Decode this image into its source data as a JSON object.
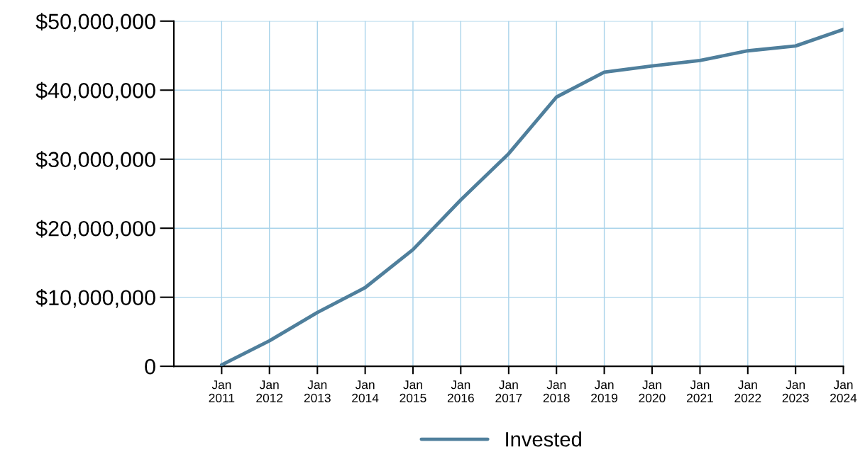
{
  "chart_data": {
    "type": "line",
    "x": [
      "2011-01",
      "2012-01",
      "2013-01",
      "2014-01",
      "2015-01",
      "2016-01",
      "2017-01",
      "2018-01",
      "2019-01",
      "2020-01",
      "2021-01",
      "2022-01",
      "2023-01",
      "2024-01"
    ],
    "series": [
      {
        "name": "Invested",
        "color": "#4f7f9c",
        "values": [
          200000,
          3700000,
          7800000,
          11400000,
          16900000,
          24100000,
          30800000,
          39000000,
          42600000,
          43500000,
          44300000,
          45700000,
          46400000,
          48800000
        ]
      }
    ],
    "xlim": [
      "2010-01",
      "2024-01"
    ],
    "xticks": [
      {
        "value": "2011-01",
        "label": "Jan\n2011"
      },
      {
        "value": "2012-01",
        "label": "Jan\n2012"
      },
      {
        "value": "2013-01",
        "label": "Jan\n2013"
      },
      {
        "value": "2014-01",
        "label": "Jan\n2014"
      },
      {
        "value": "2015-01",
        "label": "Jan\n2015"
      },
      {
        "value": "2016-01",
        "label": "Jan\n2016"
      },
      {
        "value": "2017-01",
        "label": "Jan\n2017"
      },
      {
        "value": "2018-01",
        "label": "Jan\n2018"
      },
      {
        "value": "2019-01",
        "label": "Jan\n2019"
      },
      {
        "value": "2020-01",
        "label": "Jan\n2020"
      },
      {
        "value": "2021-01",
        "label": "Jan\n2021"
      },
      {
        "value": "2022-01",
        "label": "Jan\n2022"
      },
      {
        "value": "2023-01",
        "label": "Jan\n2023"
      },
      {
        "value": "2024-01",
        "label": "Jan\n2024"
      }
    ],
    "ylim": [
      0,
      50000000
    ],
    "yticks": [
      0,
      {
        "value": 10000000,
        "label": "$10,000,000"
      },
      {
        "value": 20000000,
        "label": "$20,000,000"
      },
      {
        "value": 30000000,
        "label": "$30,000,000"
      },
      {
        "value": 40000000,
        "label": "$40,000,000"
      },
      {
        "value": 50000000,
        "label": "$50,000,000"
      }
    ],
    "grid": true,
    "legend": "bottom",
    "marker": "none",
    "line_style": "solid"
  }
}
